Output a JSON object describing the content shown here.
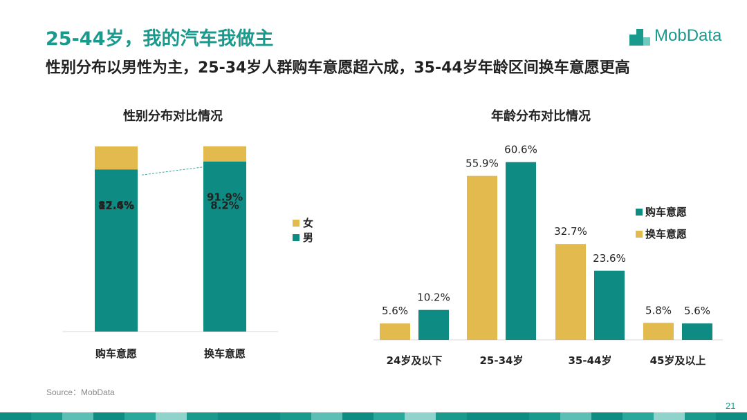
{
  "header": {
    "title": "25-44岁，我的汽车我做主",
    "subtitle": "性别分布以男性为主，25-34岁人群购车意愿超六成，35-44岁年龄区间换车意愿更高",
    "logo_text": "MobData",
    "logo_icon": "mobdata-logo-icon"
  },
  "colors": {
    "male": "#0e8b82",
    "female": "#e3ba4e",
    "accent": "#1a9a8c"
  },
  "chart_data": [
    {
      "type": "bar",
      "stacked": true,
      "title": "性别分布对比情况",
      "categories": [
        "购车意愿",
        "换车意愿"
      ],
      "series": [
        {
          "name": "男",
          "values": [
            87.6,
            91.9
          ]
        },
        {
          "name": "女",
          "values": [
            12.4,
            8.2
          ]
        }
      ],
      "data_labels": [
        [
          "87.6%",
          "91.9%"
        ],
        [
          "12.4%",
          "8.2%"
        ]
      ],
      "legend": [
        "女",
        "男"
      ],
      "legend_position": "right",
      "grid": false
    },
    {
      "type": "bar",
      "title": "年龄分布对比情况",
      "categories": [
        "24岁及以下",
        "25-34岁",
        "35-44岁",
        "45岁及以上"
      ],
      "series": [
        {
          "name": "换车意愿",
          "values": [
            5.6,
            55.9,
            32.7,
            5.8
          ]
        },
        {
          "name": "购车意愿",
          "values": [
            10.2,
            60.6,
            23.6,
            5.6
          ]
        }
      ],
      "data_labels": [
        [
          "5.6%",
          "55.9%",
          "32.7%",
          "5.8%"
        ],
        [
          "10.2%",
          "60.6%",
          "23.6%",
          "5.6%"
        ]
      ],
      "legend": [
        "购车意愿",
        "换车意愿"
      ],
      "legend_position": "right",
      "ylim": [
        0,
        65
      ],
      "grid": false
    }
  ],
  "footer": {
    "source": "Source：MobData",
    "page_number": "21"
  }
}
